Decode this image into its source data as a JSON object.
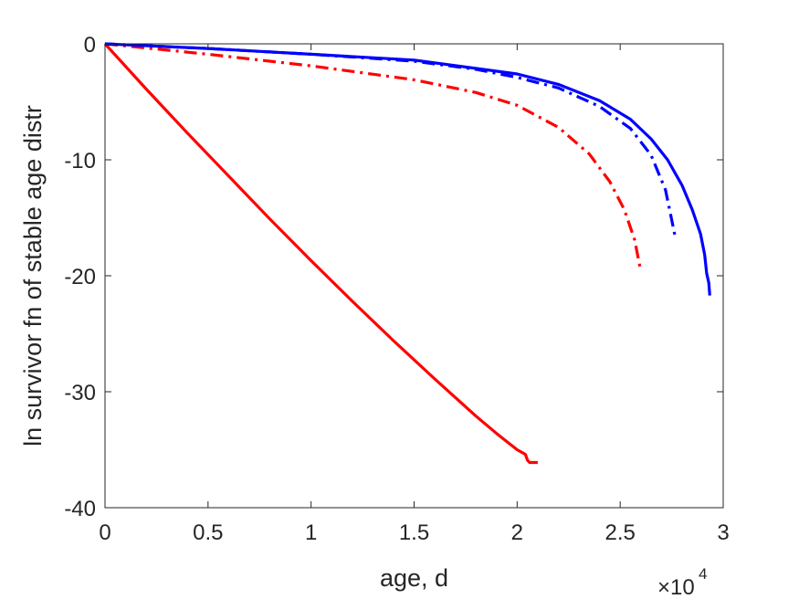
{
  "chart_data": {
    "type": "line",
    "title": "",
    "xlabel": "age, d",
    "ylabel": "ln survivor fn of stable age distr",
    "x_exponent_label": "×10",
    "x_exponent_power": "4",
    "xlim": [
      0,
      30000
    ],
    "ylim": [
      -40,
      0
    ],
    "x_ticks": [
      0,
      5000,
      10000,
      15000,
      20000,
      25000,
      30000
    ],
    "x_tick_labels": [
      "0",
      "0.5",
      "1",
      "1.5",
      "2",
      "2.5",
      "3"
    ],
    "y_ticks": [
      -40,
      -30,
      -20,
      -10,
      0
    ],
    "y_tick_labels": [
      "-40",
      "-30",
      "-20",
      "-10",
      "0"
    ],
    "grid": false,
    "box": true,
    "legend": "none",
    "series": [
      {
        "color": "#ff0000",
        "style": "solid",
        "x": [
          0,
          2000,
          4000,
          6000,
          8000,
          10000,
          12000,
          14000,
          16000,
          18000,
          19000,
          20000,
          20400,
          20500,
          20600,
          20800,
          21000
        ],
        "y": [
          0,
          -3.9,
          -7.7,
          -11.4,
          -15.1,
          -18.7,
          -22.2,
          -25.6,
          -28.9,
          -32.1,
          -33.6,
          -35.0,
          -35.4,
          -35.9,
          -36.1,
          -36.1,
          -36.1
        ]
      },
      {
        "color": "#ff0000",
        "style": "dashdot",
        "x": [
          0,
          5000,
          10000,
          15000,
          18000,
          20000,
          22000,
          23500,
          24500,
          25200,
          25700,
          26000
        ],
        "y": [
          0,
          -0.9,
          -1.9,
          -3.1,
          -4.2,
          -5.3,
          -7.2,
          -9.5,
          -11.9,
          -14.3,
          -16.9,
          -19.6
        ]
      },
      {
        "color": "#0000ff",
        "style": "dashdot",
        "x": [
          0,
          5000,
          10000,
          15000,
          18000,
          20000,
          22000,
          24000,
          25500,
          26500,
          27200,
          27700
        ],
        "y": [
          0,
          -0.4,
          -0.9,
          -1.5,
          -2.2,
          -2.9,
          -3.8,
          -5.4,
          -7.3,
          -9.6,
          -12.6,
          -16.9
        ]
      },
      {
        "color": "#0000ff",
        "style": "solid",
        "x": [
          0,
          5000,
          10000,
          15000,
          20000,
          22000,
          24000,
          25500,
          26500,
          27300,
          28000,
          28500,
          28900,
          29100,
          29200,
          29300,
          29350
        ],
        "y": [
          0,
          -0.4,
          -0.9,
          -1.4,
          -2.6,
          -3.5,
          -4.9,
          -6.5,
          -8.2,
          -10.0,
          -12.2,
          -14.3,
          -16.4,
          -18.2,
          -19.8,
          -20.6,
          -21.7
        ]
      }
    ]
  }
}
